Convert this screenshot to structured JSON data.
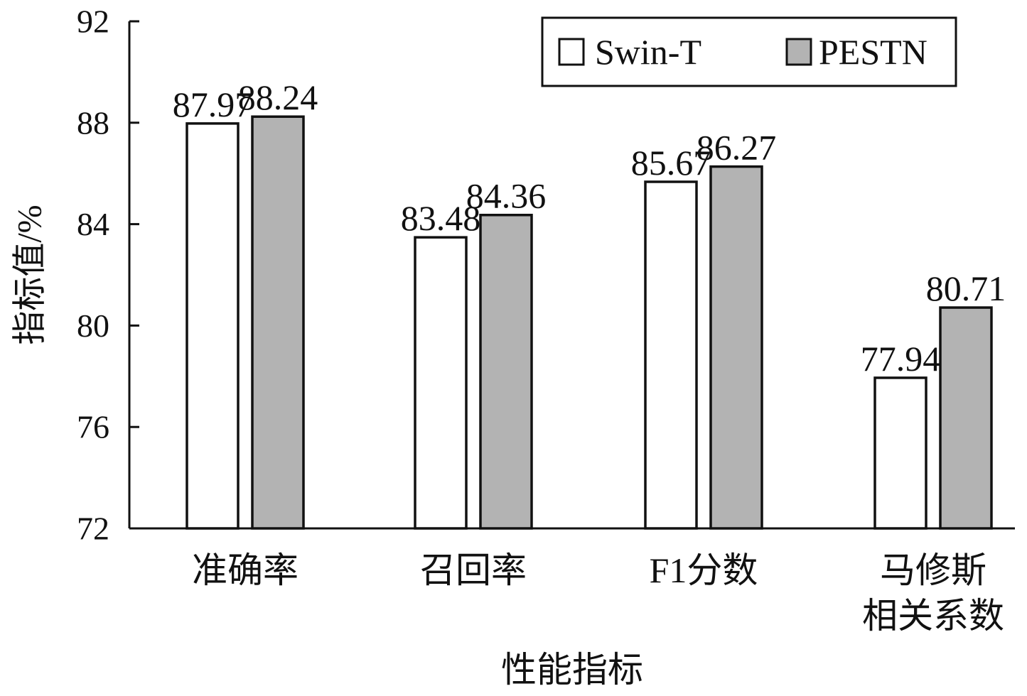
{
  "chart_data": {
    "type": "bar",
    "xlabel": "性能指标",
    "ylabel": "指标值/%",
    "ylim": [
      72,
      92
    ],
    "yticks": [
      "72",
      "76",
      "80",
      "84",
      "88",
      "92"
    ],
    "categories": [
      {
        "lines": [
          "准确率"
        ]
      },
      {
        "lines": [
          "召回率"
        ]
      },
      {
        "lines": [
          "F1分数"
        ]
      },
      {
        "lines": [
          "马修斯",
          "相关系数"
        ]
      }
    ],
    "series": [
      {
        "name": "Swin-T",
        "fill": "#ffffff",
        "values": [
          87.97,
          83.48,
          85.67,
          77.94
        ],
        "labels": [
          "87.97",
          "83.48",
          "85.67",
          "77.94"
        ]
      },
      {
        "name": "PESTN",
        "fill": "#b3b3b3",
        "values": [
          88.24,
          84.36,
          86.27,
          80.71
        ],
        "labels": [
          "88.24",
          "84.36",
          "86.27",
          "80.71"
        ]
      }
    ],
    "legend_position": "top-right",
    "grid": false
  }
}
